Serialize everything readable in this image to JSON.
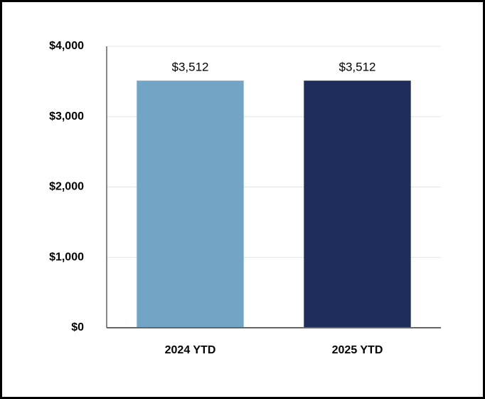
{
  "chart_data": {
    "type": "bar",
    "categories": [
      "2024 YTD",
      "2025 YTD"
    ],
    "values": [
      3512,
      3512
    ],
    "value_labels": [
      "$3,512",
      "$3,512"
    ],
    "colors": [
      "#71a4c5",
      "#1e2d5c"
    ],
    "ylim": [
      0,
      4000
    ],
    "yticks": [
      {
        "value": 0,
        "label": "$0"
      },
      {
        "value": 1000,
        "label": "$1,000"
      },
      {
        "value": 2000,
        "label": "$2,000"
      },
      {
        "value": 3000,
        "label": "$3,000"
      },
      {
        "value": 4000,
        "label": "$4,000"
      }
    ],
    "grid": true
  }
}
